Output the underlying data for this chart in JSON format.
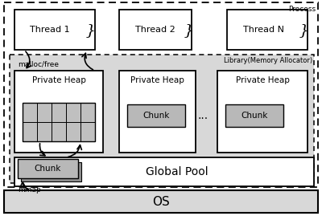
{
  "bg_color": "#ffffff",
  "process_label": "Process",
  "malloc_free_label": "malloc/free",
  "mmap_label": "mmap",
  "dots_label": "...",
  "os_label": "OS",
  "global_pool_label": "Global Pool",
  "library_label": "Library(Memory Allocator)",
  "thread_labels": [
    "Thread 1",
    "Thread 2",
    "Thread N"
  ],
  "heap_label": "Private Heap",
  "chunk_label": "Chunk"
}
